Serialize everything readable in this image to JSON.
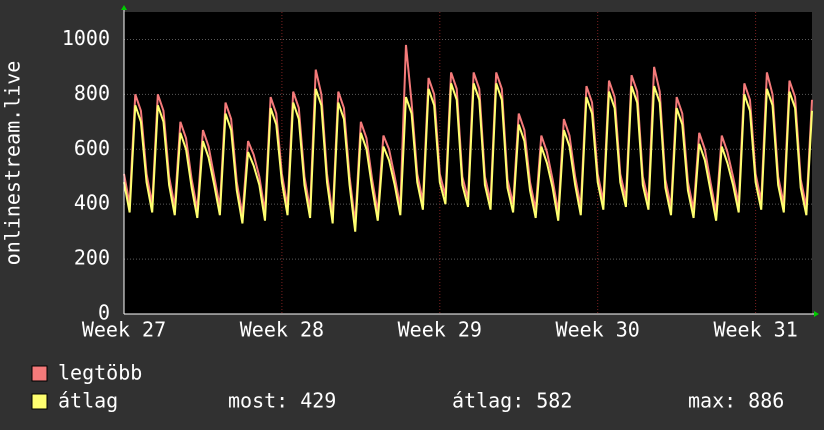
{
  "chart_data": {
    "type": "line",
    "y_label": "onlinestream.live",
    "x": [
      0,
      0.25,
      0.5,
      0.75,
      1,
      1.25,
      1.5,
      1.75,
      2,
      2.25,
      2.5,
      2.75,
      3,
      3.25,
      3.5,
      3.75,
      4,
      4.25,
      4.5,
      4.75,
      5,
      5.25,
      5.5,
      5.75,
      6,
      6.25,
      6.5,
      6.75,
      7,
      7.25,
      7.5,
      7.75,
      8,
      8.25,
      8.5,
      8.75,
      9,
      9.25,
      9.5,
      9.75,
      10,
      10.25,
      10.5,
      10.75,
      11,
      11.25,
      11.5,
      11.75,
      12,
      12.25,
      12.5,
      12.75,
      13,
      13.25,
      13.5,
      13.75,
      14,
      14.25,
      14.5,
      14.75,
      15,
      15.25,
      15.5,
      15.75,
      16,
      16.25,
      16.5,
      16.75,
      17,
      17.25,
      17.5,
      17.75,
      18,
      18.25,
      18.5,
      18.75,
      19,
      19.25,
      19.5,
      19.75,
      20,
      20.25,
      20.5,
      20.75,
      21,
      21.25,
      21.5,
      21.75,
      22,
      22.25,
      22.5,
      22.75,
      23,
      23.25,
      23.5,
      23.75,
      24,
      24.25,
      24.5,
      24.75,
      25,
      25.25,
      25.5,
      25.75,
      26,
      26.25,
      26.5,
      26.75,
      27,
      27.25,
      27.5,
      27.75,
      28,
      28.25,
      28.5,
      28.75,
      29,
      29.25,
      29.5,
      29.75,
      30,
      30.25,
      30.5
    ],
    "series": [
      {
        "name": "legtöbb",
        "color": "#f47a7a",
        "values": [
          510,
          400,
          800,
          740,
          510,
          400,
          800,
          740,
          500,
          390,
          700,
          640,
          490,
          380,
          670,
          610,
          500,
          390,
          770,
          710,
          480,
          360,
          630,
          580,
          500,
          370,
          790,
          730,
          510,
          390,
          810,
          750,
          500,
          380,
          890,
          800,
          510,
          360,
          810,
          750,
          500,
          330,
          700,
          640,
          490,
          370,
          650,
          600,
          500,
          390,
          980,
          770,
          510,
          410,
          860,
          800,
          510,
          430,
          880,
          820,
          500,
          420,
          880,
          820,
          500,
          410,
          880,
          820,
          490,
          400,
          730,
          670,
          480,
          380,
          650,
          590,
          490,
          370,
          710,
          650,
          500,
          390,
          830,
          770,
          510,
          410,
          850,
          790,
          510,
          420,
          870,
          810,
          500,
          410,
          900,
          810,
          490,
          390,
          790,
          730,
          480,
          380,
          660,
          600,
          480,
          370,
          650,
          590,
          500,
          400,
          840,
          780,
          510,
          410,
          880,
          800,
          500,
          400,
          850,
          790,
          490,
          390,
          780
        ]
      },
      {
        "name": "átlag",
        "color": "#ffff70",
        "values": [
          480,
          370,
          760,
          700,
          480,
          370,
          760,
          700,
          470,
          360,
          660,
          600,
          460,
          350,
          630,
          570,
          470,
          360,
          730,
          670,
          450,
          330,
          590,
          540,
          470,
          340,
          750,
          690,
          480,
          360,
          770,
          710,
          470,
          350,
          820,
          760,
          480,
          330,
          770,
          710,
          470,
          300,
          660,
          600,
          460,
          340,
          610,
          560,
          470,
          360,
          790,
          730,
          480,
          380,
          820,
          760,
          480,
          400,
          840,
          780,
          470,
          390,
          840,
          780,
          470,
          380,
          840,
          780,
          460,
          370,
          690,
          630,
          450,
          350,
          610,
          550,
          460,
          340,
          670,
          610,
          470,
          360,
          790,
          730,
          480,
          380,
          810,
          750,
          480,
          390,
          830,
          770,
          470,
          380,
          830,
          770,
          460,
          360,
          750,
          690,
          450,
          350,
          620,
          560,
          450,
          340,
          610,
          550,
          470,
          370,
          800,
          740,
          480,
          380,
          820,
          760,
          470,
          370,
          810,
          750,
          460,
          360,
          740
        ]
      }
    ],
    "xlim": [
      0,
      30.5
    ],
    "xticks": [
      {
        "value": 0,
        "label": "Week 27"
      },
      {
        "value": 7,
        "label": "Week 28"
      },
      {
        "value": 14,
        "label": "Week 29"
      },
      {
        "value": 21,
        "label": "Week 30"
      },
      {
        "value": 28,
        "label": "Week 31"
      }
    ],
    "ylim": [
      0,
      1100
    ],
    "yticks": [
      0,
      200,
      400,
      600,
      800,
      1000
    ],
    "grid": true,
    "stats": [
      {
        "label": "most:",
        "value": 429
      },
      {
        "label": "átlag:",
        "value": 582
      },
      {
        "label": "max:",
        "value": 886
      }
    ]
  }
}
